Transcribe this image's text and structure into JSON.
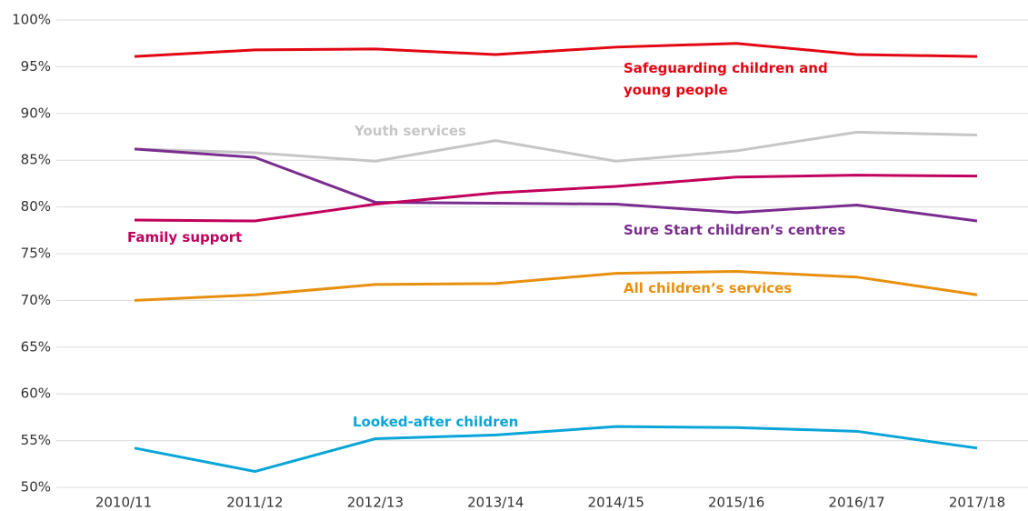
{
  "chart_data": {
    "type": "line",
    "categories": [
      "2010/11",
      "2011/12",
      "2012/13",
      "2013/14",
      "2014/15",
      "2015/16",
      "2016/17",
      "2017/18"
    ],
    "series": [
      {
        "name": "Safeguarding children and young people",
        "color": "#e30613",
        "values": [
          96.1,
          96.8,
          96.9,
          96.3,
          97.1,
          97.5,
          96.3,
          96.1
        ]
      },
      {
        "name": "Youth services",
        "color": "#c6c6c6",
        "values": [
          86.2,
          85.8,
          84.9,
          87.1,
          84.9,
          86.0,
          88.0,
          87.7
        ]
      },
      {
        "name": "Sure Start children’s centres",
        "color": "#7b2d8e",
        "values": [
          86.2,
          85.3,
          80.5,
          80.4,
          80.3,
          79.4,
          80.2,
          78.5
        ]
      },
      {
        "name": "Family support",
        "color": "#c0005c",
        "values": [
          78.6,
          78.5,
          80.3,
          81.5,
          82.2,
          83.2,
          83.4,
          83.3
        ]
      },
      {
        "name": "All children’s services",
        "color": "#e8900e",
        "values": [
          70.0,
          70.6,
          71.7,
          71.8,
          72.9,
          73.1,
          72.5,
          70.6
        ]
      },
      {
        "name": "Looked-after children",
        "color": "#0aa5d8",
        "values": [
          54.2,
          51.7,
          55.2,
          55.6,
          56.5,
          56.4,
          56.0,
          54.2
        ]
      }
    ],
    "ylim": [
      50,
      100
    ],
    "yticks": [
      {
        "value": 50,
        "label": "50%"
      },
      {
        "value": 55,
        "label": "55%"
      },
      {
        "value": 60,
        "label": "60%"
      },
      {
        "value": 65,
        "label": "65%"
      },
      {
        "value": 70,
        "label": "70%"
      },
      {
        "value": 75,
        "label": "75%"
      },
      {
        "value": 80,
        "label": "80%"
      },
      {
        "value": 85,
        "label": "85%"
      },
      {
        "value": 90,
        "label": "90%"
      },
      {
        "value": 95,
        "label": "95%"
      },
      {
        "value": 100,
        "label": "100%"
      }
    ],
    "grid": true
  }
}
